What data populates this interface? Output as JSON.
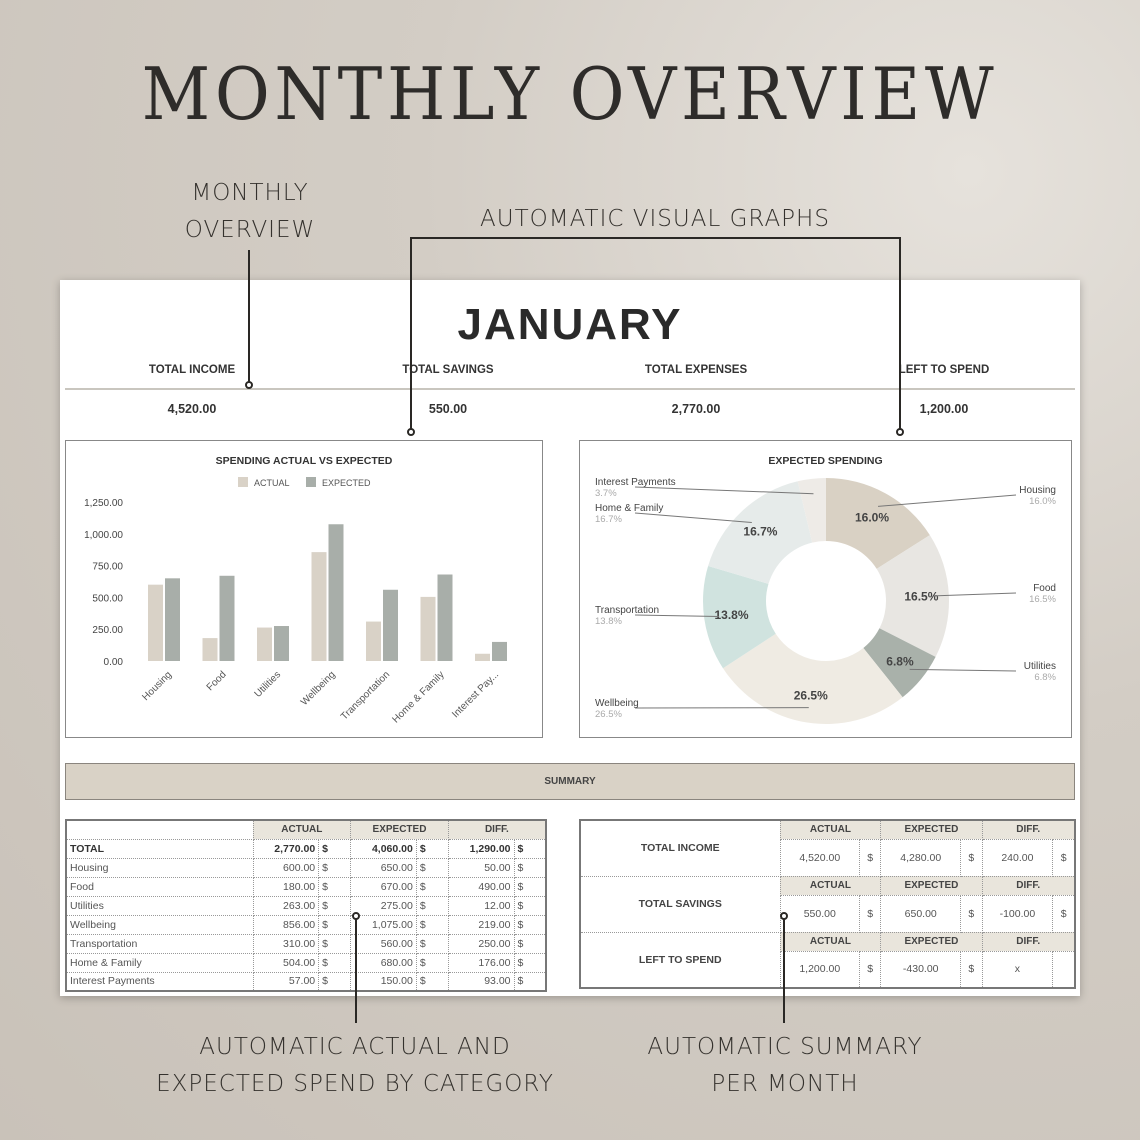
{
  "hero_title": "MONTHLY OVERVIEW",
  "annotations": {
    "monthly_overview": [
      "MONTHLY",
      "OVERVIEW"
    ],
    "visual_graphs": "AUTOMATIC VISUAL GRAPHS",
    "actual_expected": [
      "AUTOMATIC ACTUAL AND",
      "EXPECTED SPEND BY CATEGORY"
    ],
    "summary": [
      "AUTOMATIC SUMMARY",
      "PER MONTH"
    ]
  },
  "sheet": {
    "month": "JANUARY",
    "stats": [
      {
        "label": "TOTAL INCOME",
        "value": "4,520.00"
      },
      {
        "label": "TOTAL SAVINGS",
        "value": "550.00"
      },
      {
        "label": "TOTAL EXPENSES",
        "value": "2,770.00"
      },
      {
        "label": "LEFT TO SPEND",
        "value": "1,200.00"
      }
    ],
    "summary_label": "SUMMARY",
    "category_table": {
      "headers": [
        "ACTUAL",
        "EXPECTED",
        "DIFF."
      ],
      "currency": "$",
      "rows": [
        [
          "TOTAL",
          "2,770.00",
          "4,060.00",
          "1,290.00"
        ],
        [
          "Housing",
          "600.00",
          "650.00",
          "50.00"
        ],
        [
          "Food",
          "180.00",
          "670.00",
          "490.00"
        ],
        [
          "Utilities",
          "263.00",
          "275.00",
          "12.00"
        ],
        [
          "Wellbeing",
          "856.00",
          "1,075.00",
          "219.00"
        ],
        [
          "Transportation",
          "310.00",
          "560.00",
          "250.00"
        ],
        [
          "Home & Family",
          "504.00",
          "680.00",
          "176.00"
        ],
        [
          "Interest Payments",
          "57.00",
          "150.00",
          "93.00"
        ]
      ]
    },
    "summary_table": {
      "headers": [
        "ACTUAL",
        "EXPECTED",
        "DIFF."
      ],
      "rows": [
        {
          "label": "TOTAL INCOME",
          "values": [
            "4,520.00",
            "$",
            "4,280.00",
            "$",
            "240.00",
            "$"
          ]
        },
        {
          "label": "TOTAL SAVINGS",
          "values": [
            "550.00",
            "$",
            "650.00",
            "$",
            "-100.00",
            "$"
          ]
        },
        {
          "label": "LEFT TO SPEND",
          "values": [
            "1,200.00",
            "$",
            "-430.00",
            "$",
            "x",
            ""
          ]
        }
      ]
    }
  },
  "chart_data": [
    {
      "type": "bar",
      "title": "SPENDING ACTUAL VS EXPECTED",
      "categories": [
        "Housing",
        "Food",
        "Utilities",
        "Wellbeing",
        "Transportation",
        "Home & Family",
        "Interest Pay..."
      ],
      "series": [
        {
          "name": "ACTUAL",
          "values": [
            600,
            180,
            263,
            856,
            310,
            504,
            57
          ],
          "color": "#d9d2c7"
        },
        {
          "name": "EXPECTED",
          "values": [
            650,
            670,
            275,
            1075,
            560,
            680,
            150
          ],
          "color": "#a8aea9"
        }
      ],
      "yticks": [
        "0.00",
        "250.00",
        "500.00",
        "750.00",
        "1,000.00",
        "1,250.00"
      ],
      "ylim": [
        0,
        1250
      ],
      "legend": "top",
      "grid": false
    },
    {
      "type": "pie",
      "title": "EXPECTED SPENDING",
      "donut": true,
      "slices": [
        {
          "label": "Housing",
          "value": 16.0,
          "text": "16.0%",
          "color": "#d9d1c4"
        },
        {
          "label": "Food",
          "value": 16.5,
          "text": "16.5%",
          "color": "#e8e6e2"
        },
        {
          "label": "Utilities",
          "value": 6.8,
          "text": "6.8%",
          "color": "#a9b1aa"
        },
        {
          "label": "Wellbeing",
          "value": 26.5,
          "text": "26.5%",
          "color": "#efebe3"
        },
        {
          "label": "Transportation",
          "value": 13.8,
          "text": "13.8%",
          "color": "#d0e3df"
        },
        {
          "label": "Home & Family",
          "value": 16.7,
          "text": "16.7%",
          "color": "#e6ebea"
        },
        {
          "label": "Interest Payments",
          "value": 3.7,
          "text": "3.7%",
          "color": "#eeebe7"
        }
      ]
    }
  ]
}
